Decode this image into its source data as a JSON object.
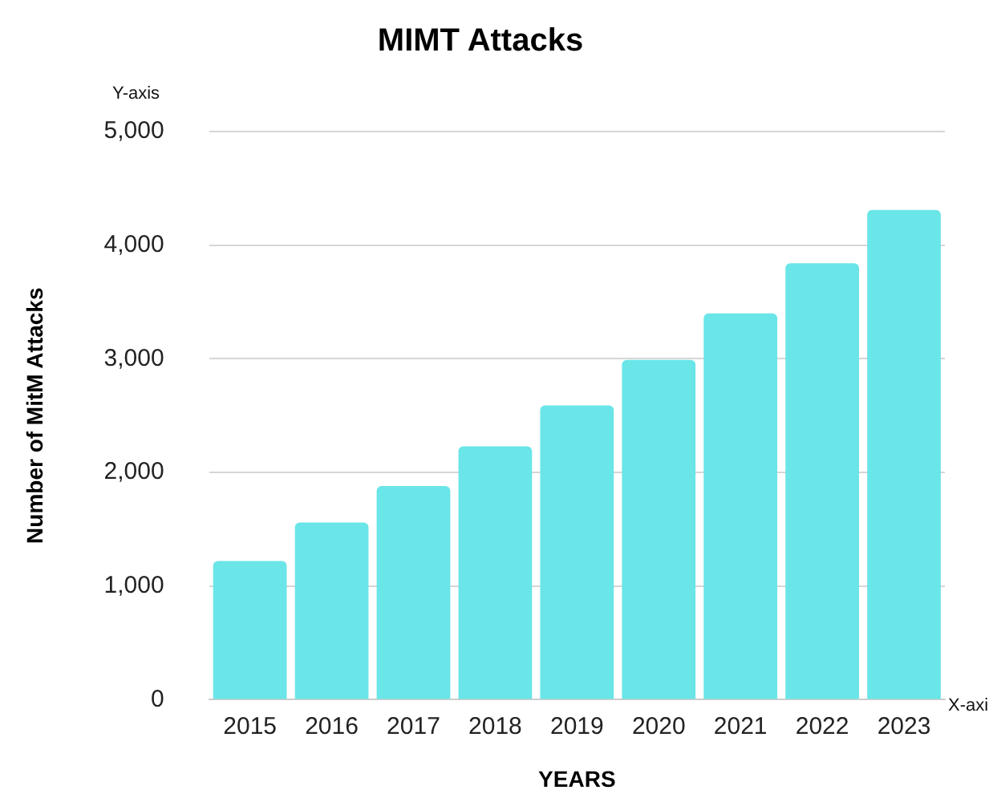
{
  "chart_data": {
    "type": "bar",
    "title": "MIMT Attacks",
    "xlabel": "YEARS",
    "ylabel": "Number of MitM Attacks",
    "categories": [
      "2015",
      "2016",
      "2017",
      "2018",
      "2019",
      "2020",
      "2021",
      "2022",
      "2023"
    ],
    "values": [
      1220,
      1560,
      1880,
      2230,
      2590,
      2990,
      3400,
      3840,
      4310
    ],
    "color": "#6ae5e8",
    "ylim": [
      0,
      5000
    ],
    "yticks": [
      {
        "value": 0,
        "label": "0"
      },
      {
        "value": 1000,
        "label": "1,000"
      },
      {
        "value": 2000,
        "label": "2,000"
      },
      {
        "value": 3000,
        "label": "3,000"
      },
      {
        "value": 4000,
        "label": "4,000"
      },
      {
        "value": 5000,
        "label": "5,000"
      }
    ],
    "grid": "y",
    "legend": false,
    "annotations": [
      "Y-axis",
      "X-axi"
    ]
  }
}
